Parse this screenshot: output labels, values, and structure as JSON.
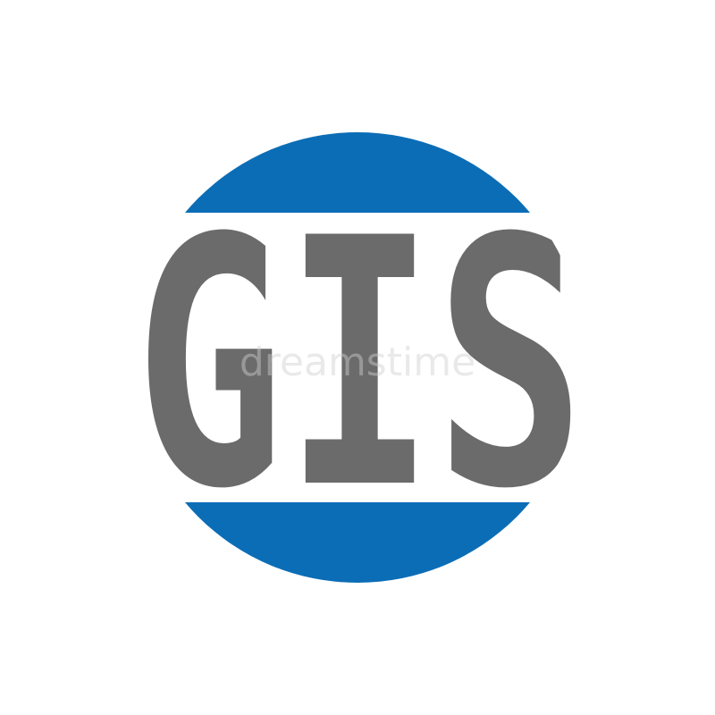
{
  "logo": {
    "text": "GIS"
  },
  "watermark": "dreamstime"
}
